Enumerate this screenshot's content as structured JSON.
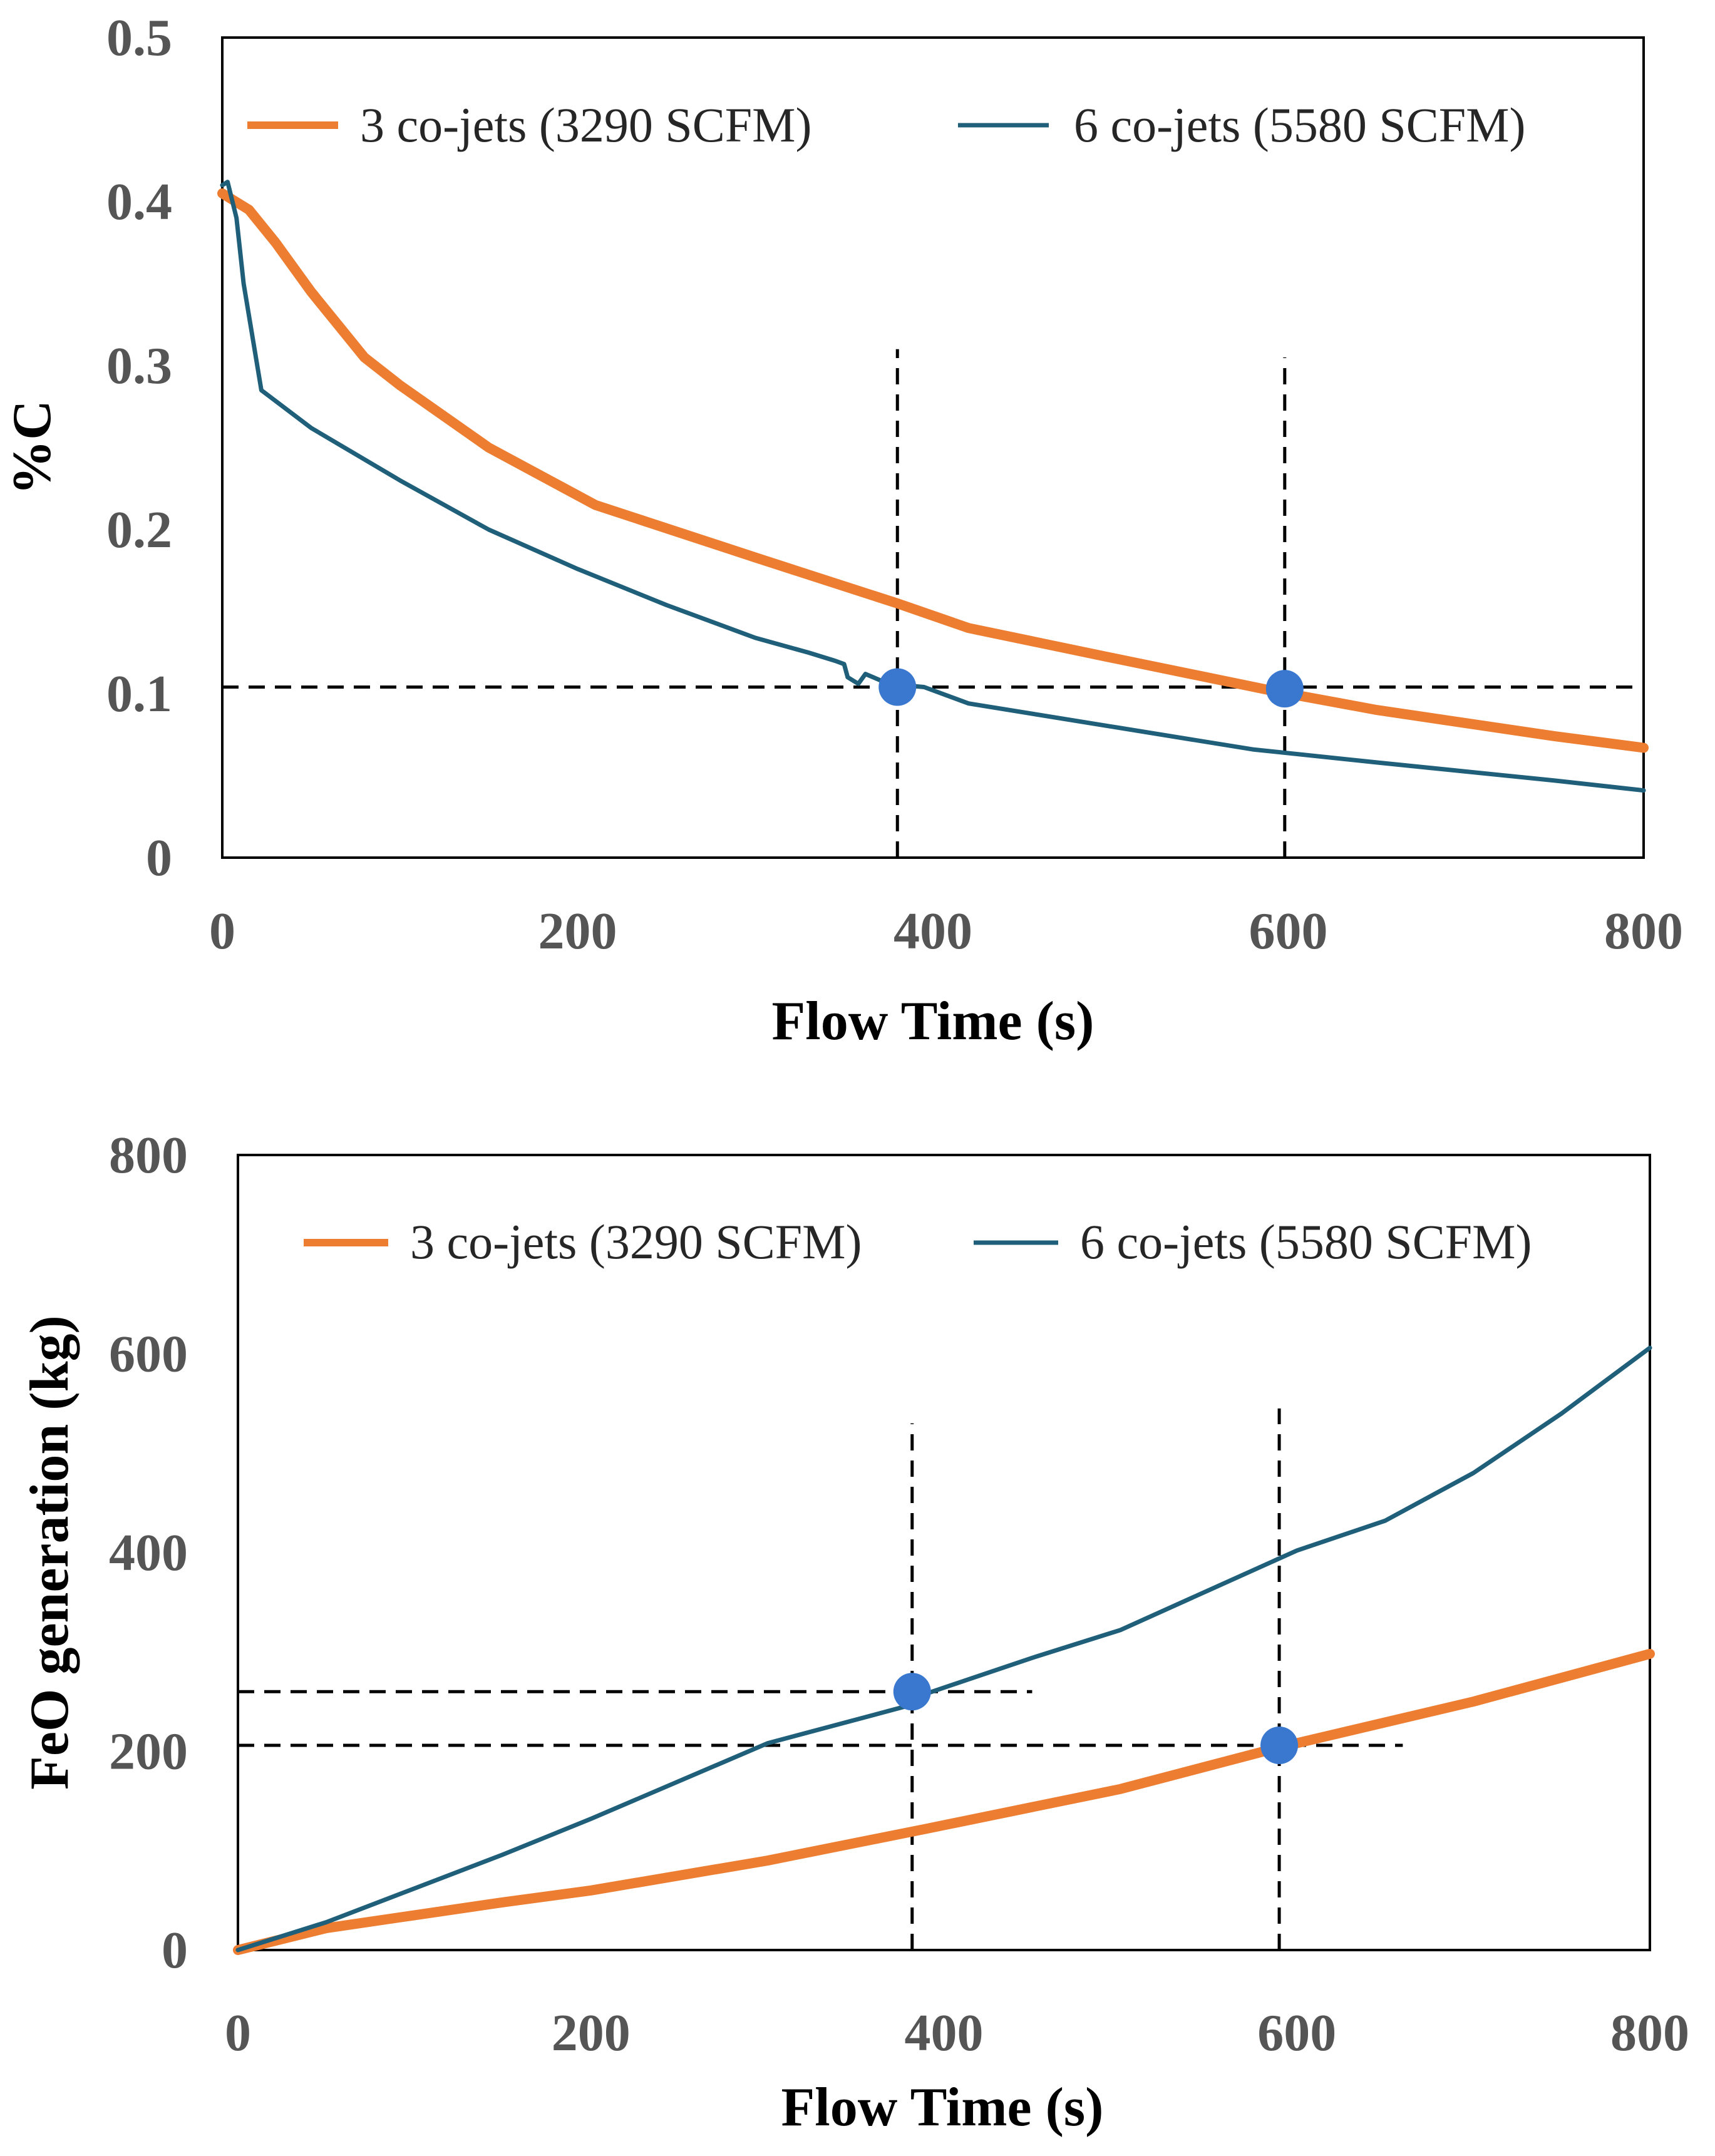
{
  "colors": {
    "series_3": "#ED7D31",
    "series_6": "#1F5F7A",
    "marker": "#3A78D0",
    "guide": "#000000"
  },
  "chart_data": [
    {
      "type": "line",
      "xlabel": "Flow Time (s)",
      "ylabel": "%C",
      "xlim": [
        0,
        800
      ],
      "ylim": [
        0,
        0.5
      ],
      "xticks": [
        "0",
        "200",
        "400",
        "600",
        "800"
      ],
      "yticks": [
        "0",
        "0.1",
        "0.2",
        "0.3",
        "0.4",
        "0.5"
      ],
      "grid": false,
      "legend_position": "top",
      "series": [
        {
          "name": "3 co-jets (3290 SCFM)",
          "color_key": "series_3",
          "width": 16,
          "points": [
            [
              0,
              0.405
            ],
            [
              15,
              0.395
            ],
            [
              30,
              0.375
            ],
            [
              50,
              0.345
            ],
            [
              80,
              0.305
            ],
            [
              100,
              0.288
            ],
            [
              150,
              0.25
            ],
            [
              210,
              0.215
            ],
            [
              300,
              0.183
            ],
            [
              380,
              0.155
            ],
            [
              420,
              0.14
            ],
            [
              500,
              0.122
            ],
            [
              590,
              0.102
            ],
            [
              650,
              0.09
            ],
            [
              750,
              0.074
            ],
            [
              800,
              0.067
            ]
          ]
        },
        {
          "name": "6 co-jets (5580 SCFM)",
          "color_key": "series_6",
          "width": 7,
          "points": [
            [
              0,
              0.41
            ],
            [
              3,
              0.412
            ],
            [
              8,
              0.39
            ],
            [
              12,
              0.35
            ],
            [
              22,
              0.285
            ],
            [
              50,
              0.262
            ],
            [
              100,
              0.23
            ],
            [
              150,
              0.2
            ],
            [
              200,
              0.176
            ],
            [
              250,
              0.154
            ],
            [
              300,
              0.134
            ],
            [
              330,
              0.125
            ],
            [
              345,
              0.12
            ],
            [
              350,
              0.118
            ],
            [
              352,
              0.11
            ],
            [
              358,
              0.106
            ],
            [
              362,
              0.112
            ],
            [
              375,
              0.106
            ],
            [
              395,
              0.104
            ],
            [
              420,
              0.094
            ],
            [
              500,
              0.08
            ],
            [
              580,
              0.066
            ],
            [
              650,
              0.058
            ],
            [
              750,
              0.047
            ],
            [
              800,
              0.041
            ]
          ]
        }
      ],
      "guides": [
        {
          "orientation": "horizontal",
          "value": 0.104,
          "from": 0,
          "to": 800
        },
        {
          "orientation": "vertical",
          "value": 380,
          "from": 0,
          "to": 0.31
        },
        {
          "orientation": "vertical",
          "value": 598,
          "from": 0,
          "to": 0.305
        }
      ],
      "markers": [
        [
          380,
          0.104
        ],
        [
          598,
          0.103
        ]
      ]
    },
    {
      "type": "line",
      "xlabel": "Flow Time (s)",
      "ylabel": "FeO generation (kg)",
      "xlim": [
        0,
        800
      ],
      "ylim": [
        0,
        800
      ],
      "xticks": [
        "0",
        "200",
        "400",
        "600",
        "800"
      ],
      "yticks": [
        "0",
        "200",
        "400",
        "600",
        "800"
      ],
      "grid": false,
      "legend_position": "top",
      "series": [
        {
          "name": "3 co-jets (3290 SCFM)",
          "color_key": "series_3",
          "width": 16,
          "points": [
            [
              0,
              0
            ],
            [
              50,
              22
            ],
            [
              100,
              35
            ],
            [
              150,
              48
            ],
            [
              200,
              60
            ],
            [
              300,
              90
            ],
            [
              390,
              122
            ],
            [
              500,
              162
            ],
            [
              590,
              204
            ],
            [
              700,
              250
            ],
            [
              800,
              298
            ]
          ]
        },
        {
          "name": "6 co-jets (5580 SCFM)",
          "color_key": "series_6",
          "width": 7,
          "points": [
            [
              0,
              0
            ],
            [
              50,
              28
            ],
            [
              100,
              62
            ],
            [
              150,
              96
            ],
            [
              200,
              132
            ],
            [
              300,
              208
            ],
            [
              380,
              246
            ],
            [
              390,
              258
            ],
            [
              450,
              294
            ],
            [
              500,
              322
            ],
            [
              550,
              362
            ],
            [
              600,
              402
            ],
            [
              650,
              432
            ],
            [
              700,
              480
            ],
            [
              750,
              540
            ],
            [
              800,
              606
            ]
          ]
        }
      ],
      "guides": [
        {
          "orientation": "horizontal",
          "value": 260,
          "from": 0,
          "to": 450
        },
        {
          "orientation": "horizontal",
          "value": 206,
          "from": 0,
          "to": 660
        },
        {
          "orientation": "vertical",
          "value": 382,
          "from": 0,
          "to": 530
        },
        {
          "orientation": "vertical",
          "value": 590,
          "from": 0,
          "to": 545
        }
      ],
      "markers": [
        [
          382,
          260
        ],
        [
          590,
          206
        ]
      ]
    }
  ]
}
